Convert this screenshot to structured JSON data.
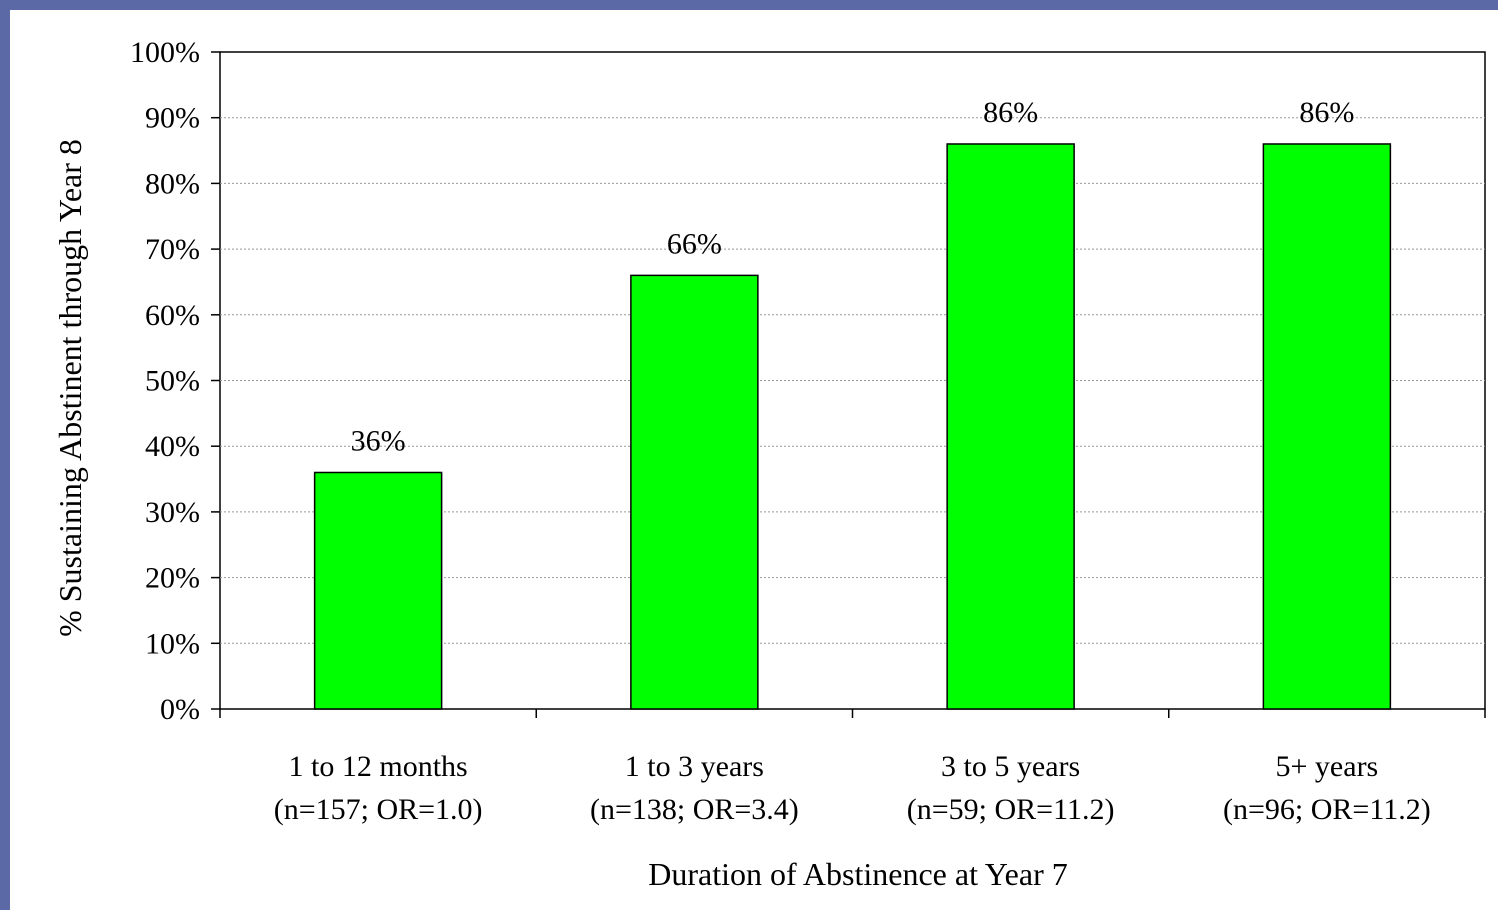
{
  "chart_data": {
    "type": "bar",
    "categories": [
      [
        "1 to 12 months",
        "(n=157; OR=1.0)"
      ],
      [
        "1 to 3 years",
        "(n=138; OR=3.4)"
      ],
      [
        "3 to 5 years",
        "(n=59; OR=11.2)"
      ],
      [
        "5+ years",
        "(n=96; OR=11.2)"
      ]
    ],
    "values": [
      36,
      66,
      86,
      86
    ],
    "data_labels": [
      "36%",
      "66%",
      "86%",
      "86%"
    ],
    "xlabel": "Duration of Abstinence at Year 7",
    "ylabel": "% Sustaining Abstinent through Year 8",
    "ylim": [
      0,
      100
    ],
    "yticks": [
      0,
      10,
      20,
      30,
      40,
      50,
      60,
      70,
      80,
      90,
      100
    ],
    "ytick_labels": [
      "0%",
      "10%",
      "20%",
      "30%",
      "40%",
      "50%",
      "60%",
      "70%",
      "80%",
      "90%",
      "100%"
    ],
    "grid": "horizontal dotted",
    "colors": {
      "bar": "#00ff00",
      "frame": "#5b6aa6",
      "grid": "#999999"
    }
  }
}
